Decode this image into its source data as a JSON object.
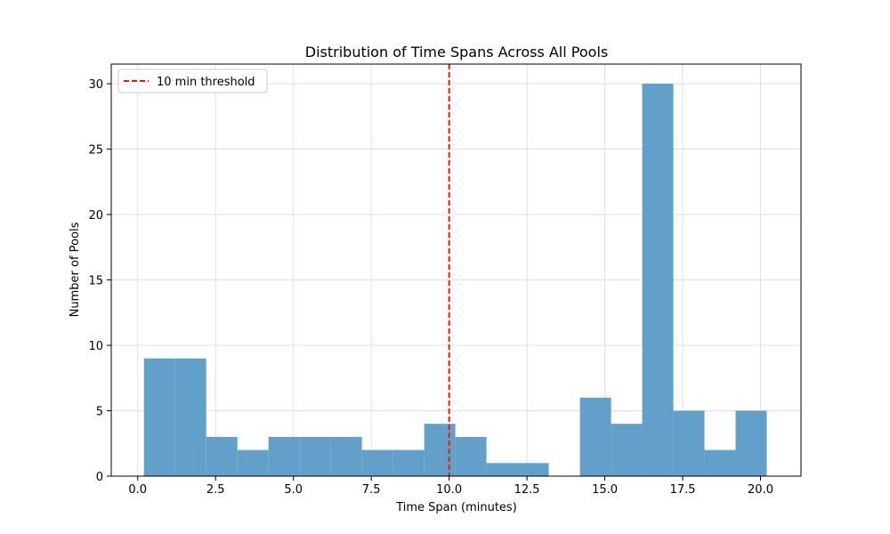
{
  "chart_data": {
    "type": "bar",
    "title": "Distribution of Time Spans Across All Pools",
    "xlabel": "Time Span (minutes)",
    "ylabel": "Number of Pools",
    "xlim": [
      -0.85,
      21.3
    ],
    "ylim": [
      0,
      31.5
    ],
    "xticks": [
      0.0,
      2.5,
      5.0,
      7.5,
      10.0,
      12.5,
      15.0,
      17.5,
      20.0
    ],
    "xtick_labels": [
      "0.0",
      "2.5",
      "5.0",
      "7.5",
      "10.0",
      "12.5",
      "15.0",
      "17.5",
      "20.0"
    ],
    "yticks": [
      0,
      5,
      10,
      15,
      20,
      25,
      30
    ],
    "ytick_labels": [
      "0",
      "5",
      "10",
      "15",
      "20",
      "25",
      "30"
    ],
    "grid": true,
    "bar_color": "#62a0ca",
    "bins": [
      {
        "start": 0.2,
        "end": 1.2,
        "count": 9
      },
      {
        "start": 1.2,
        "end": 2.2,
        "count": 9
      },
      {
        "start": 2.2,
        "end": 3.2,
        "count": 3
      },
      {
        "start": 3.2,
        "end": 4.2,
        "count": 2
      },
      {
        "start": 4.2,
        "end": 5.2,
        "count": 3
      },
      {
        "start": 5.2,
        "end": 6.2,
        "count": 3
      },
      {
        "start": 6.2,
        "end": 7.2,
        "count": 3
      },
      {
        "start": 7.2,
        "end": 8.2,
        "count": 2
      },
      {
        "start": 8.2,
        "end": 9.2,
        "count": 2
      },
      {
        "start": 9.2,
        "end": 10.2,
        "count": 4
      },
      {
        "start": 10.2,
        "end": 11.2,
        "count": 3
      },
      {
        "start": 11.2,
        "end": 12.2,
        "count": 1
      },
      {
        "start": 12.2,
        "end": 13.2,
        "count": 1
      },
      {
        "start": 13.2,
        "end": 14.2,
        "count": 0
      },
      {
        "start": 14.2,
        "end": 15.2,
        "count": 6
      },
      {
        "start": 15.2,
        "end": 16.2,
        "count": 4
      },
      {
        "start": 16.2,
        "end": 17.2,
        "count": 30
      },
      {
        "start": 17.2,
        "end": 18.2,
        "count": 5
      },
      {
        "start": 18.2,
        "end": 19.2,
        "count": 2
      },
      {
        "start": 19.2,
        "end": 20.2,
        "count": 5
      }
    ],
    "threshold": {
      "x": 10,
      "label": "10 min threshold",
      "color": "#e31a1c",
      "style": "dashed"
    },
    "legend_position": "top-left"
  }
}
